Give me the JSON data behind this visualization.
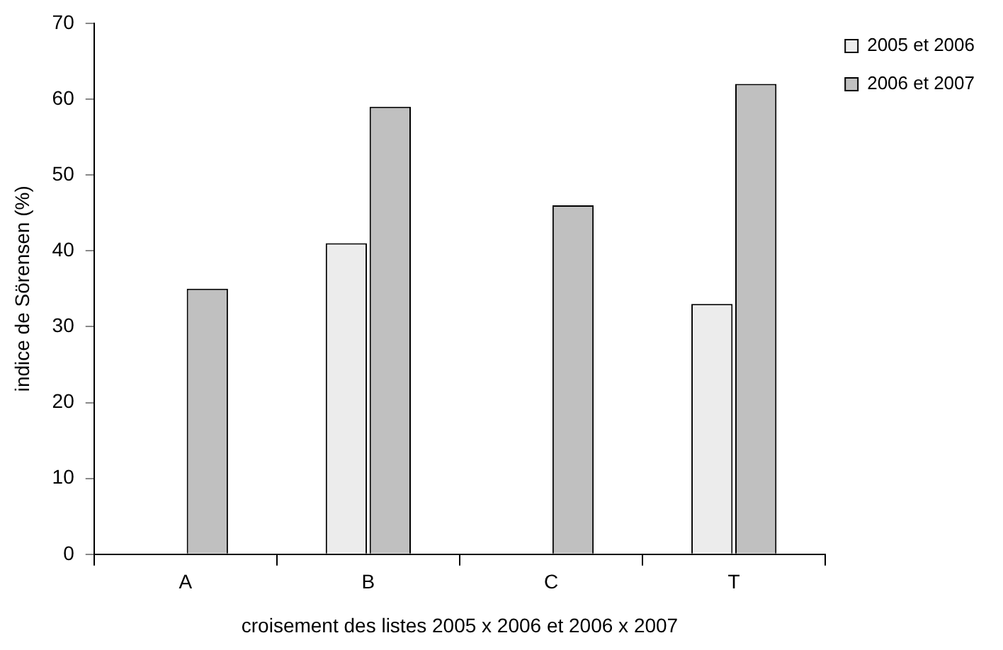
{
  "chart_data": {
    "type": "bar",
    "xlabel": "croisement des listes 2005 x 2006 et 2006 x 2007",
    "ylabel": "indice de Sörensen (%)",
    "categories": [
      "A",
      "B",
      "C",
      "T"
    ],
    "series": [
      {
        "name": "2005 et 2006",
        "color": "#ececec",
        "values": [
          null,
          41,
          null,
          33
        ]
      },
      {
        "name": "2006 et 2007",
        "color": "#c0c0c0",
        "values": [
          35,
          59,
          46,
          62
        ]
      }
    ],
    "ylim": [
      0,
      70
    ],
    "yticks": [
      0,
      10,
      20,
      30,
      40,
      50,
      60,
      70
    ],
    "grid": false,
    "legend": "right"
  }
}
